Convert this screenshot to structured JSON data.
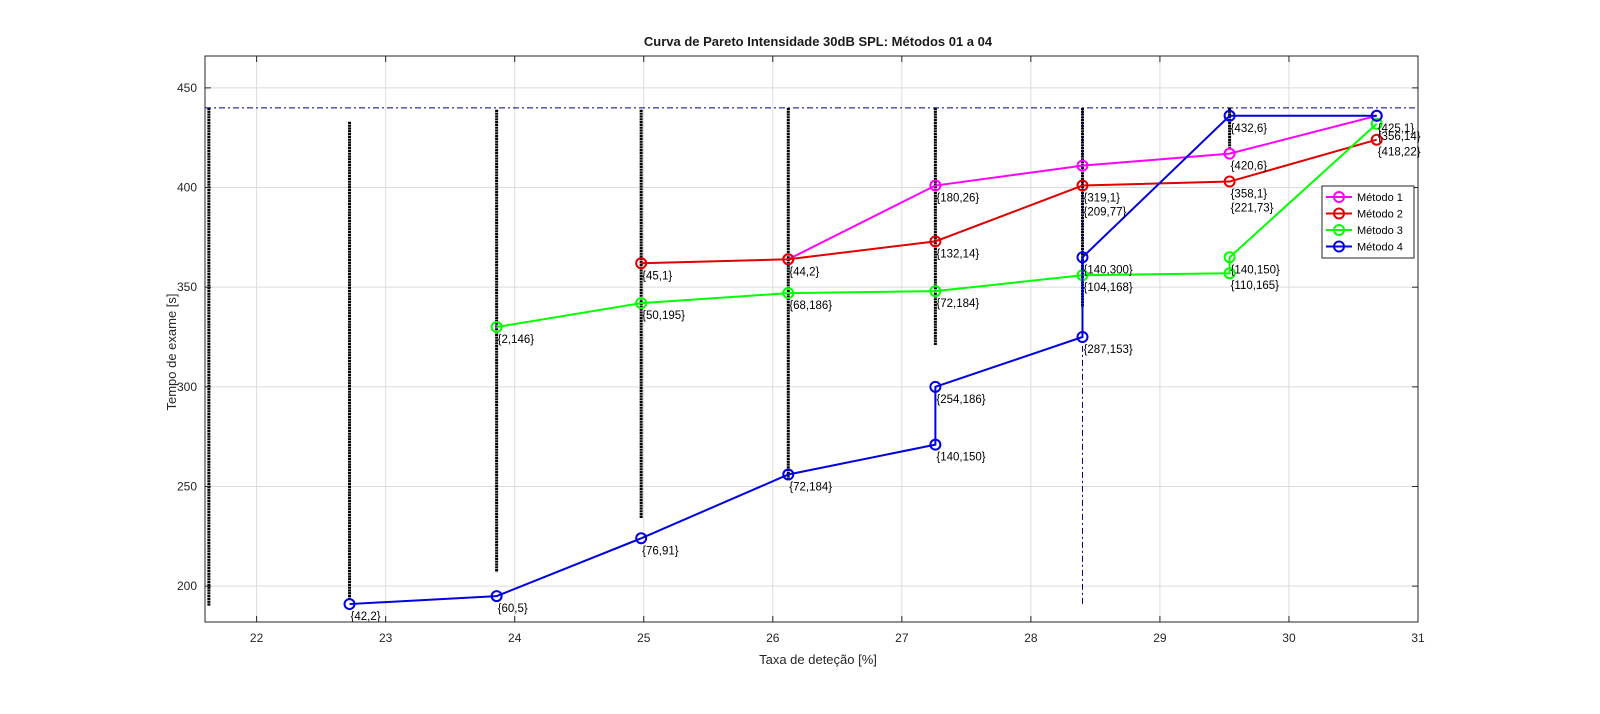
{
  "chart_data": {
    "type": "line",
    "title": "Curva de Pareto Intensidade 30dB SPL: Métodos 01 a 04",
    "xlabel": "Taxa de deteção [%]",
    "ylabel": "Tempo de exame [s]",
    "xlim": [
      21.6,
      31.0
    ],
    "ylim": [
      182,
      466
    ],
    "xticks": [
      22,
      23,
      24,
      25,
      26,
      27,
      28,
      29,
      30,
      31
    ],
    "yticks": [
      200,
      250,
      300,
      350,
      400,
      450
    ],
    "grid": true,
    "legend_position": "right",
    "reference_lines": {
      "horizontal_y": 440,
      "vertical_x": 28.4,
      "vertical_y_range": [
        190,
        440
      ],
      "color": "#00007f"
    },
    "scatter_columns": [
      {
        "x": 21.63,
        "y_range": [
          190,
          440
        ],
        "color": "#000000"
      },
      {
        "x": 22.72,
        "y_range": [
          193,
          433
        ],
        "color": "#000000"
      },
      {
        "x": 23.86,
        "y_range": [
          207,
          439
        ],
        "color": "#000000"
      },
      {
        "x": 24.98,
        "y_range": [
          234,
          439
        ],
        "color": "#000000"
      },
      {
        "x": 26.12,
        "y_range": [
          254,
          440
        ],
        "color": "#000000"
      },
      {
        "x": 27.26,
        "y_range": [
          321,
          440
        ],
        "color": "#000000"
      },
      {
        "x": 28.4,
        "y_range": [
          340,
          440
        ],
        "color": "#000000"
      },
      {
        "x": 29.54,
        "y_range": [
          420,
          440
        ],
        "color": "#000000"
      }
    ],
    "series": [
      {
        "name": "Método 1",
        "color": "#ff00ff",
        "x": [
          26.12,
          27.26,
          28.4,
          29.54,
          30.68
        ],
        "y": [
          364,
          401,
          411,
          417,
          436
        ],
        "point_labels": [
          "",
          "{180,26}",
          "",
          "{420,6}",
          "{425,1}"
        ]
      },
      {
        "name": "Método 2",
        "color": "#e00000",
        "x": [
          24.98,
          26.12,
          27.26,
          28.4,
          29.54,
          30.68
        ],
        "y": [
          362,
          364,
          373,
          401,
          403,
          424
        ],
        "point_labels": [
          "{45,1}",
          "{44,2}",
          "{132,14}",
          "{319,1}",
          "{358,1}",
          "{418,22}"
        ]
      },
      {
        "name": "Método 3",
        "color": "#00ff00",
        "x": [
          23.86,
          24.98,
          26.12,
          27.26,
          28.4,
          29.54,
          29.54,
          30.68
        ],
        "y": [
          330,
          342,
          347,
          348,
          356,
          357,
          365,
          432
        ],
        "point_labels": [
          "{2,146}",
          "{50,195}",
          "{68,186}",
          "{72,184}",
          "{104,168}",
          "{110,165}",
          "{140,150}",
          "{356,14}"
        ]
      },
      {
        "name": "Método 4",
        "color": "#0000e0",
        "x": [
          22.72,
          23.86,
          24.98,
          26.12,
          27.26,
          27.26,
          28.4,
          28.4,
          29.54,
          30.68
        ],
        "y": [
          191,
          195,
          224,
          256,
          271,
          300,
          325,
          365,
          436,
          436
        ],
        "point_labels": [
          "{42,2}",
          "{60,5}",
          "{76,91}",
          "{72,184}",
          "{140,150}",
          "{254,186}",
          "{287,153}",
          "{140,300}",
          "{432,6}",
          ""
        ]
      }
    ],
    "extra_labels": [
      {
        "text": "{209,77}",
        "x": 28.4
      },
      {
        "text": "{221,73}",
        "x": 29.54
      }
    ]
  }
}
